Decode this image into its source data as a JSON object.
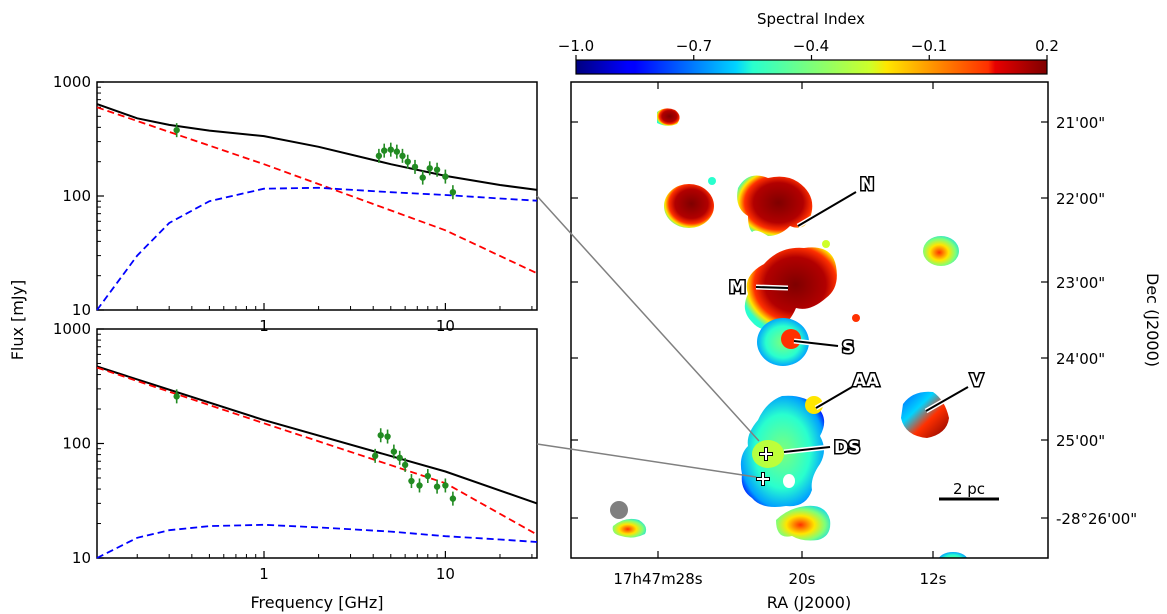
{
  "chart_data": [
    {
      "type": "line",
      "panel": "top-left",
      "xlabel": "",
      "ylabel": "",
      "x_scale": "log",
      "y_scale": "log",
      "xlim": [
        0.12,
        32
      ],
      "ylim": [
        10,
        1000
      ],
      "x_ticks": [
        {
          "value": 1,
          "label": "1"
        },
        {
          "value": 10,
          "label": "10"
        }
      ],
      "y_ticks": [
        {
          "value": 10,
          "label": "10"
        },
        {
          "value": 100,
          "label": "100"
        },
        {
          "value": 1000,
          "label": "1000"
        }
      ],
      "series": [
        {
          "style": "solid",
          "color": "#000000",
          "x": [
            0.12,
            0.2,
            0.3,
            0.5,
            1,
            2,
            5,
            10,
            20,
            32
          ],
          "y": [
            640,
            480,
            420,
            375,
            335,
            270,
            190,
            150,
            125,
            113
          ]
        },
        {
          "style": "dashed",
          "color": "#ff0000",
          "x": [
            0.12,
            1,
            10,
            32
          ],
          "y": [
            600,
            190,
            50,
            21
          ]
        },
        {
          "style": "dashed",
          "color": "#0000ff",
          "x": [
            0.12,
            0.2,
            0.3,
            0.5,
            1,
            2,
            5,
            10,
            20,
            32
          ],
          "y": [
            10,
            30,
            58,
            90,
            116,
            118,
            108,
            102,
            95,
            91
          ]
        },
        {
          "style": "points",
          "color": "#228b22",
          "x": [
            0.33,
            4.3,
            4.6,
            5.0,
            5.4,
            5.8,
            6.2,
            6.8,
            7.5,
            8.2,
            9.0,
            10.0,
            11.0
          ],
          "y": [
            378,
            225,
            250,
            255,
            245,
            225,
            200,
            180,
            145,
            175,
            170,
            148,
            108
          ]
        }
      ]
    },
    {
      "type": "line",
      "panel": "bottom-left",
      "xlabel": "Frequency [GHz]",
      "ylabel": "Flux [mJy]",
      "x_scale": "log",
      "y_scale": "log",
      "xlim": [
        0.12,
        32
      ],
      "ylim": [
        10,
        1000
      ],
      "x_ticks": [
        {
          "value": 1,
          "label": "1"
        },
        {
          "value": 10,
          "label": "10"
        }
      ],
      "y_ticks": [
        {
          "value": 10,
          "label": "10"
        },
        {
          "value": 100,
          "label": "100"
        },
        {
          "value": 1000,
          "label": "1000"
        }
      ],
      "series": [
        {
          "style": "solid",
          "color": "#000000",
          "x": [
            0.12,
            1,
            10,
            32
          ],
          "y": [
            470,
            160,
            57,
            30
          ]
        },
        {
          "style": "dashed",
          "color": "#ff0000",
          "x": [
            0.12,
            1,
            10,
            32
          ],
          "y": [
            460,
            150,
            45,
            16
          ]
        },
        {
          "style": "dashed",
          "color": "#0000ff",
          "x": [
            0.12,
            0.2,
            0.3,
            0.5,
            1,
            2,
            5,
            10,
            20,
            32
          ],
          "y": [
            10,
            15,
            17.5,
            19,
            19.5,
            18.5,
            17,
            15.5,
            14.5,
            13.8
          ]
        },
        {
          "style": "points",
          "color": "#228b22",
          "x": [
            0.33,
            4.1,
            4.4,
            4.8,
            5.2,
            5.6,
            6.0,
            6.5,
            7.2,
            8.0,
            9.0,
            10.0,
            11.0
          ],
          "y": [
            258,
            78,
            118,
            115,
            85,
            75,
            65,
            47,
            43,
            52,
            42,
            43,
            33
          ]
        }
      ]
    },
    {
      "type": "heatmap",
      "panel": "right",
      "xlabel": "RA (J2000)",
      "ylabel": "Dec (J2000)",
      "x_tick_labels": [
        "17h47m28s",
        "20s",
        "12s"
      ],
      "y_tick_labels": [
        "21'00\"",
        "22'00\"",
        "23'00\"",
        "24'00\"",
        "25'00\"",
        "-28°26'00\""
      ],
      "colorbar": {
        "label": "Spectral Index",
        "ticks": [
          "−1.0",
          "−0.7",
          "−0.4",
          "−0.1",
          "0.2"
        ],
        "range": [
          -1.0,
          0.2
        ],
        "colormap": "jet"
      },
      "source_labels": [
        "N",
        "M",
        "S",
        "AA",
        "V",
        "DS"
      ],
      "scale_bar_label": "2 pc"
    }
  ],
  "colors": {
    "model_total": "#000000",
    "model_power_law": "#ff0000",
    "model_thermal": "#0000ff",
    "data_points": "#228b22",
    "connector": "#808080"
  }
}
